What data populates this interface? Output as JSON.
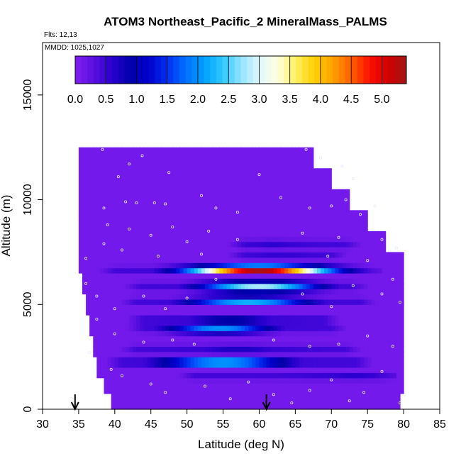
{
  "chart_data": {
    "type": "heatmap",
    "title": "ATOM3 Northeast_Pacific_2 MineralMass_PALMS",
    "flights_label": "Flts: 12,13",
    "mmdd_label": "MMDD: 1025,1027",
    "xlabel": "Latitude (deg N)",
    "ylabel": "Altitude (m)",
    "xlim": [
      30,
      85
    ],
    "ylim": [
      0,
      17500
    ],
    "x_ticks": [
      "30",
      "35",
      "40",
      "45",
      "50",
      "55",
      "60",
      "65",
      "70",
      "75",
      "80",
      "85"
    ],
    "x_tick_values": [
      30,
      35,
      40,
      45,
      50,
      55,
      60,
      65,
      70,
      75,
      80,
      85
    ],
    "y_ticks": [
      "0",
      "5000",
      "10000",
      "15000"
    ],
    "y_tick_values": [
      0,
      5000,
      10000,
      15000
    ],
    "colorbar": {
      "min": 0,
      "max": 5.4,
      "tick_labels": [
        "0.0",
        "0.5",
        "1.0",
        "1.5",
        "2.0",
        "2.5",
        "3.0",
        "3.5",
        "4.0",
        "4.5",
        "5.0"
      ],
      "tick_values": [
        0,
        0.5,
        1.0,
        1.5,
        2.0,
        2.5,
        3.0,
        3.5,
        4.0,
        4.5,
        5.0
      ],
      "colors": [
        "#7F1EF0",
        "#5A0FE0",
        "#2A00D0",
        "#0000A8",
        "#0000CC",
        "#0030F0",
        "#0070FF",
        "#00A0FF",
        "#30C8FF",
        "#90E4FF",
        "#E0F6FF",
        "#FFFFE0",
        "#FFF060",
        "#FFD000",
        "#FFA000",
        "#FF6000",
        "#FF1000",
        "#D00000",
        "#A01818"
      ]
    },
    "background_value": 0.1,
    "coverage": [
      {
        "alt": 250,
        "lat_min": 39.5,
        "lat_max": 79.5
      },
      {
        "alt": 1000,
        "lat_min": 38.5,
        "lat_max": 80.0
      },
      {
        "alt": 2000,
        "lat_min": 37.5,
        "lat_max": 80.0
      },
      {
        "alt": 3000,
        "lat_min": 37.0,
        "lat_max": 80.0
      },
      {
        "alt": 4000,
        "lat_min": 36.5,
        "lat_max": 80.0
      },
      {
        "alt": 5000,
        "lat_min": 36.0,
        "lat_max": 80.0
      },
      {
        "alt": 6000,
        "lat_min": 35.5,
        "lat_max": 80.0
      },
      {
        "alt": 7000,
        "lat_min": 35.0,
        "lat_max": 80.0
      },
      {
        "alt": 8000,
        "lat_min": 35.0,
        "lat_max": 77.5
      },
      {
        "alt": 9000,
        "lat_min": 35.0,
        "lat_max": 75.0
      },
      {
        "alt": 10000,
        "lat_min": 35.0,
        "lat_max": 72.5
      },
      {
        "alt": 11000,
        "lat_min": 35.0,
        "lat_max": 70.0
      },
      {
        "alt": 12000,
        "lat_min": 35.0,
        "lat_max": 67.5
      }
    ],
    "bands": [
      {
        "alt": 6700,
        "lat_min": 37.0,
        "lat_max": 77.0,
        "lat_peak": 60.0,
        "peak": 5.3
      },
      {
        "alt": 5900,
        "lat_min": 40.5,
        "lat_max": 76.0,
        "lat_peak": 60.0,
        "peak": 2.8
      },
      {
        "alt": 5200,
        "lat_min": 40.0,
        "lat_max": 77.0,
        "lat_peak": 58.5,
        "peak": 2.2
      },
      {
        "alt": 4250,
        "lat_min": 41.0,
        "lat_max": 72.0,
        "lat_peak": 56.0,
        "peak": 0.9
      },
      {
        "alt": 3800,
        "lat_min": 41.0,
        "lat_max": 73.0,
        "lat_peak": 54.5,
        "peak": 2.0
      },
      {
        "alt": 2900,
        "lat_min": 40.0,
        "lat_max": 75.0,
        "lat_peak": 57.0,
        "peak": 0.7
      },
      {
        "alt": 2250,
        "lat_min": 38.0,
        "lat_max": 76.5,
        "lat_peak": 55.0,
        "peak": 2.0
      },
      {
        "alt": 1550,
        "lat_min": 48.0,
        "lat_max": 79.0,
        "lat_peak": 73.0,
        "peak": 0.6
      },
      {
        "alt": 7900,
        "lat_min": 55.0,
        "lat_max": 75.0,
        "lat_peak": 62.0,
        "peak": 0.6
      },
      {
        "alt": 7300,
        "lat_min": 55.0,
        "lat_max": 73.0,
        "lat_peak": 63.0,
        "peak": 0.4
      }
    ],
    "sample_points": [
      [
        38.3,
        12400
      ],
      [
        43.8,
        12100
      ],
      [
        47.5,
        11300
      ],
      [
        42.0,
        11700
      ],
      [
        40.5,
        11100
      ],
      [
        66.5,
        12400
      ],
      [
        68.5,
        12000
      ],
      [
        71.5,
        11600
      ],
      [
        60.0,
        11200
      ],
      [
        73.0,
        11000
      ],
      [
        41.5,
        9900
      ],
      [
        43.0,
        9850
      ],
      [
        45.5,
        9850
      ],
      [
        47.0,
        9800
      ],
      [
        38.5,
        9600
      ],
      [
        52.0,
        10200
      ],
      [
        54.0,
        9600
      ],
      [
        57.0,
        9400
      ],
      [
        63.0,
        10100
      ],
      [
        67.0,
        9600
      ],
      [
        70.0,
        9700
      ],
      [
        72.0,
        10000
      ],
      [
        74.0,
        9300
      ],
      [
        76.0,
        9700
      ],
      [
        39.0,
        8800
      ],
      [
        42.0,
        8600
      ],
      [
        45.0,
        8300
      ],
      [
        48.0,
        8700
      ],
      [
        50.0,
        8000
      ],
      [
        53.0,
        8500
      ],
      [
        57.0,
        8100
      ],
      [
        66.0,
        8400
      ],
      [
        71.0,
        8200
      ],
      [
        77.0,
        8100
      ],
      [
        79.0,
        7700
      ],
      [
        36.0,
        7200
      ],
      [
        38.5,
        7900
      ],
      [
        41.0,
        7600
      ],
      [
        46.0,
        7300
      ],
      [
        52.0,
        7400
      ],
      [
        69.5,
        7300
      ],
      [
        75.0,
        7100
      ],
      [
        78.5,
        6200
      ],
      [
        36.0,
        6000
      ],
      [
        37.5,
        5400
      ],
      [
        40.0,
        4800
      ],
      [
        44.0,
        5400
      ],
      [
        47.0,
        4800
      ],
      [
        50.0,
        5300
      ],
      [
        54.0,
        6200
      ],
      [
        66.0,
        5500
      ],
      [
        70.0,
        4900
      ],
      [
        73.0,
        5900
      ],
      [
        77.0,
        5500
      ],
      [
        79.5,
        5100
      ],
      [
        37.5,
        4300
      ],
      [
        40.0,
        3600
      ],
      [
        44.0,
        3200
      ],
      [
        48.0,
        3300
      ],
      [
        51.0,
        3100
      ],
      [
        62.0,
        3300
      ],
      [
        67.0,
        3000
      ],
      [
        71.0,
        3100
      ],
      [
        75.0,
        3500
      ],
      [
        78.5,
        3000
      ],
      [
        36.5,
        2700
      ],
      [
        39.5,
        1900
      ],
      [
        41.0,
        1600
      ],
      [
        45.0,
        1200
      ],
      [
        47.0,
        800
      ],
      [
        52.5,
        1100
      ],
      [
        56.0,
        500
      ],
      [
        58.5,
        1300
      ],
      [
        62.0,
        700
      ],
      [
        64.5,
        300
      ],
      [
        67.0,
        900
      ],
      [
        70.0,
        1400
      ],
      [
        72.5,
        400
      ],
      [
        74.5,
        800
      ],
      [
        77.0,
        1800
      ],
      [
        79.5,
        300
      ]
    ],
    "arrows_lat": [
      34.5,
      61.0
    ]
  }
}
